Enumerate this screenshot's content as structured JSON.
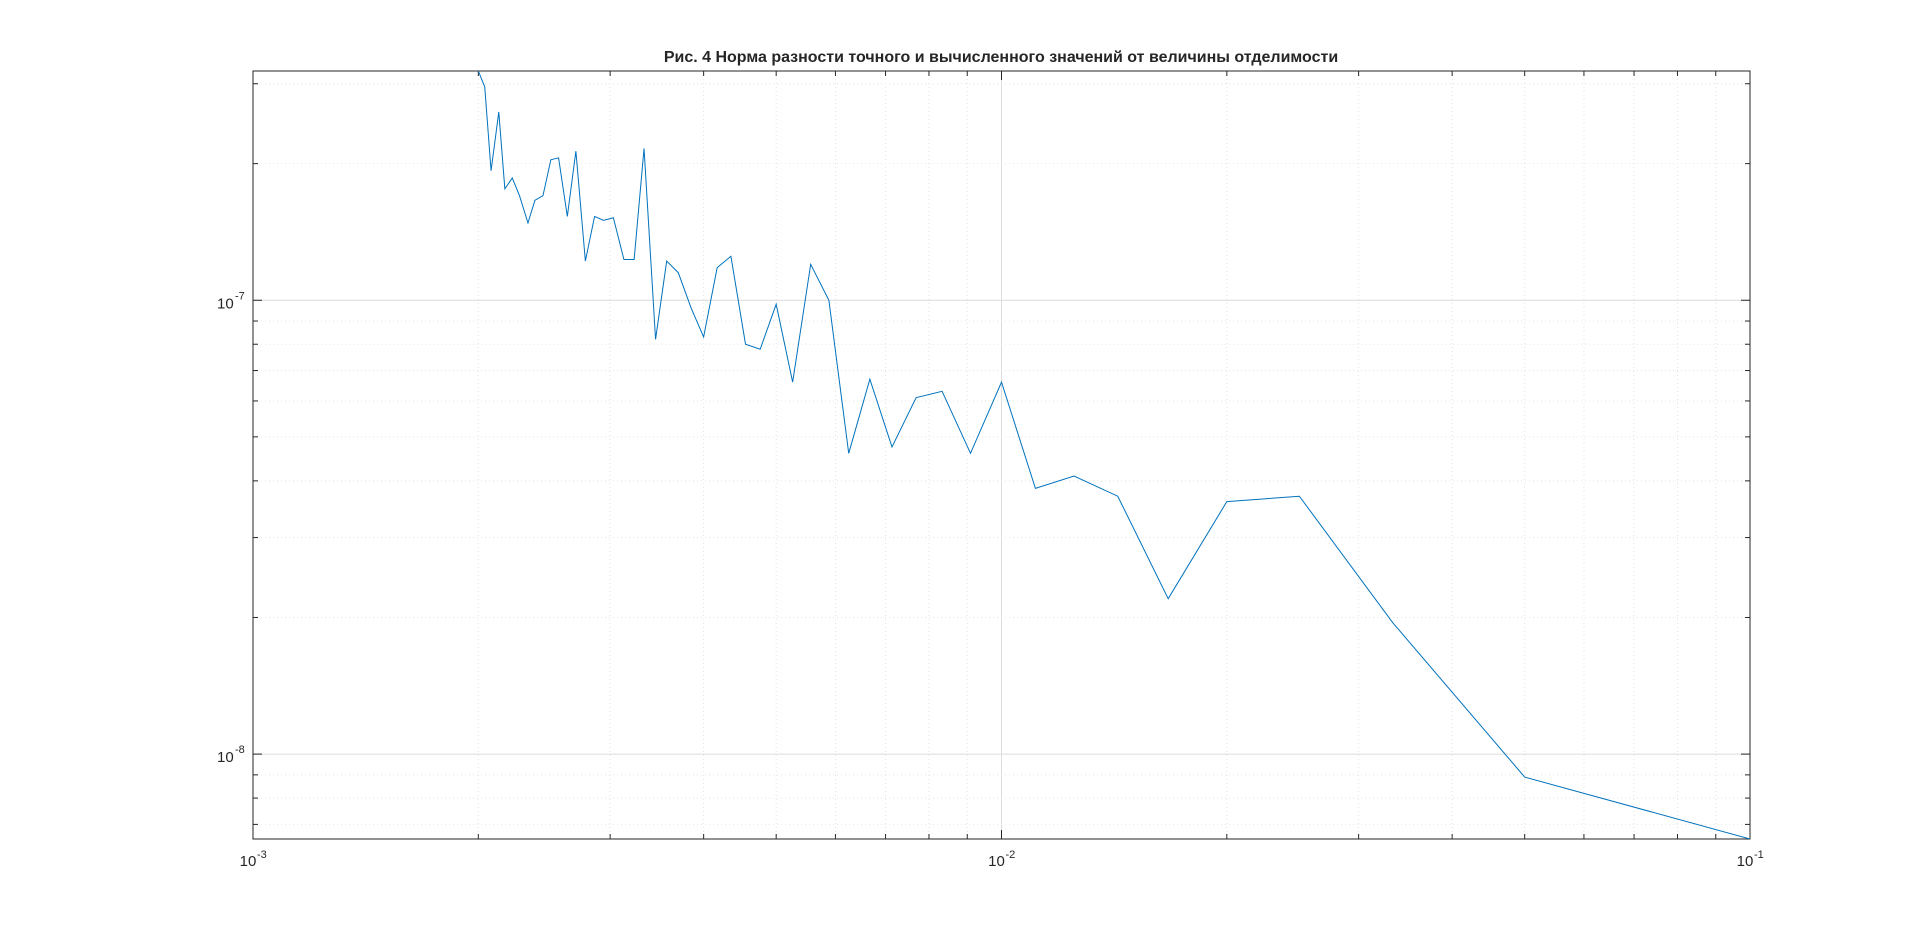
{
  "chart_data": {
    "type": "line",
    "title": "Рис. 4 Норма разности точного и вычисленного значений от величины отделимости",
    "xlabel": "",
    "ylabel": "",
    "xscale": "log",
    "yscale": "log",
    "xlim": [
      0.001,
      0.1
    ],
    "ylim": [
      6.5e-09,
      3.2e-07
    ],
    "grid": true,
    "minor_grid": true,
    "box": true,
    "line_color": "#0072bd",
    "x_ticks": [
      {
        "base": "10",
        "exp": "-3",
        "value": 0.001
      },
      {
        "base": "10",
        "exp": "-2",
        "value": 0.01
      },
      {
        "base": "10",
        "exp": "-1",
        "value": 0.1
      }
    ],
    "y_ticks": [
      {
        "base": "10",
        "exp": "-8",
        "value": 1e-08
      },
      {
        "base": "10",
        "exp": "-7",
        "value": 1e-07
      }
    ],
    "series": [
      {
        "x": [
          0.002,
          0.00204,
          0.00208,
          0.00213,
          0.00217,
          0.00222,
          0.00227,
          0.00233,
          0.00238,
          0.00244,
          0.0025,
          0.00256,
          0.00263,
          0.0027,
          0.00278,
          0.00286,
          0.00294,
          0.00303,
          0.00313,
          0.00323,
          0.00333,
          0.00345,
          0.00357,
          0.0037,
          0.00385,
          0.004,
          0.00417,
          0.00435,
          0.00455,
          0.00476,
          0.005,
          0.00526,
          0.00556,
          0.00588,
          0.00625,
          0.00667,
          0.00714,
          0.00769,
          0.00833,
          0.00909,
          0.01,
          0.0111,
          0.0125,
          0.0143,
          0.0167,
          0.02,
          0.025,
          0.0333,
          0.05,
          0.1
        ],
        "y": [
          3.2e-07,
          2.95e-07,
          1.93e-07,
          2.6e-07,
          1.76e-07,
          1.86e-07,
          1.7e-07,
          1.48e-07,
          1.66e-07,
          1.7e-07,
          2.04e-07,
          2.06e-07,
          1.53e-07,
          2.13e-07,
          1.22e-07,
          1.53e-07,
          1.5e-07,
          1.52e-07,
          1.23e-07,
          1.23e-07,
          2.16e-07,
          8.2e-08,
          1.22e-07,
          1.15e-07,
          9.6e-08,
          8.3e-08,
          1.18e-07,
          1.25e-07,
          8e-08,
          7.8e-08,
          9.8e-08,
          6.6e-08,
          1.2e-07,
          1e-07,
          4.6e-08,
          6.7e-08,
          4.75e-08,
          6.1e-08,
          6.3e-08,
          4.6e-08,
          6.6e-08,
          3.85e-08,
          4.1e-08,
          3.7e-08,
          2.2e-08,
          3.6e-08,
          3.7e-08,
          1.95e-08,
          8.9e-09,
          6.5e-09
        ]
      }
    ]
  }
}
